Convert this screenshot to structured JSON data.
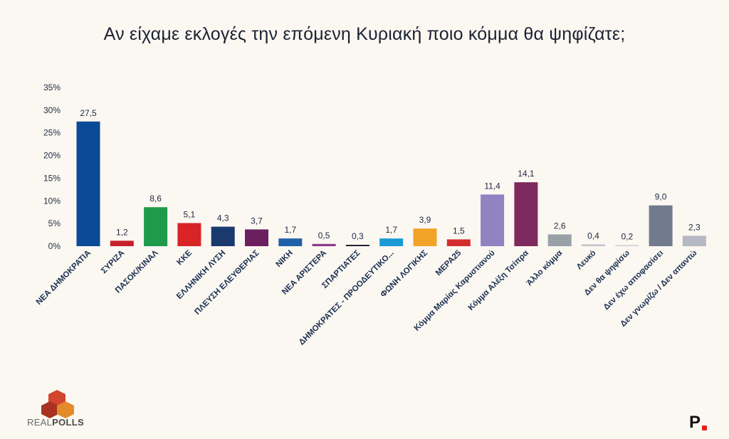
{
  "chart_data": {
    "type": "bar",
    "title": "Αν είχαμε εκλογές την επόμενη Κυριακή ποιο κόμμα θα ψηφίζατε;",
    "categories": [
      "ΝΕΑ ΔΗΜΟΚΡΑΤΙΑ",
      "ΣΥΡΙΖΑ",
      "ΠΑΣΟΚ/ΚΙΝΑΛ",
      "ΚΚΕ",
      "ΕΛΛΗΝΙΚΗ ΛΥΣΗ",
      "ΠΛΕΥΣΗ ΕΛΕΥΘΕΡΙΑΣ",
      "ΝΙΚΗ",
      "ΝΕΑ ΑΡΙΣΤΕΡΑ",
      "ΣΠΑΡΤΙΑΤΕΣ",
      "ΔΗΜΟΚΡΑΤΕΣ - ΠΡΟΟΔΕΥΤΙΚΟ...",
      "ΦΩΝΗ ΛΟΓΙΚΗΣ",
      "ΜΕΡΑ25",
      "Κόμμα Μαρίας Καρυστιανού",
      "Κόμμα Αλέξη Τσίπρα",
      "Άλλο κόμμα",
      "Λευκό",
      "Δεν θα ψηφίσω",
      "Δεν έχω αποφασίσει",
      "Δεν γνωρίζω / Δεν απαντώ"
    ],
    "values": [
      27.5,
      1.2,
      8.6,
      5.1,
      4.3,
      3.7,
      1.7,
      0.5,
      0.3,
      1.7,
      3.9,
      1.5,
      11.4,
      14.1,
      2.6,
      0.4,
      0.2,
      9.0,
      2.3
    ],
    "value_labels": [
      "27,5",
      "1,2",
      "8,6",
      "5,1",
      "4,3",
      "3,7",
      "1,7",
      "0,5",
      "0,3",
      "1,7",
      "3,9",
      "1,5",
      "11,4",
      "14,1",
      "2,6",
      "0,4",
      "0,2",
      "9,0",
      "2,3"
    ],
    "colors": [
      "#0b4a97",
      "#c8202f",
      "#1f9a4b",
      "#d82427",
      "#1a3a6e",
      "#6b1f5f",
      "#2060a8",
      "#8a3b8c",
      "#1b1b2a",
      "#1a9ad6",
      "#f2a32a",
      "#d32e2e",
      "#8f83c2",
      "#7e2a5e",
      "#9aa0a8",
      "#c0c4cc",
      "#c9cdd3",
      "#727b8e",
      "#b4b9c4"
    ],
    "yticks": [
      "0%",
      "5%",
      "10%",
      "15%",
      "20%",
      "25%",
      "30%",
      "35%"
    ],
    "ylim": [
      0,
      35
    ],
    "xlabel": "",
    "ylabel": "",
    "grid": false,
    "legend": "none"
  },
  "branding": {
    "realpolls_text_a": "REAL",
    "realpolls_text_b": "POLLS",
    "right_logo": "P"
  }
}
